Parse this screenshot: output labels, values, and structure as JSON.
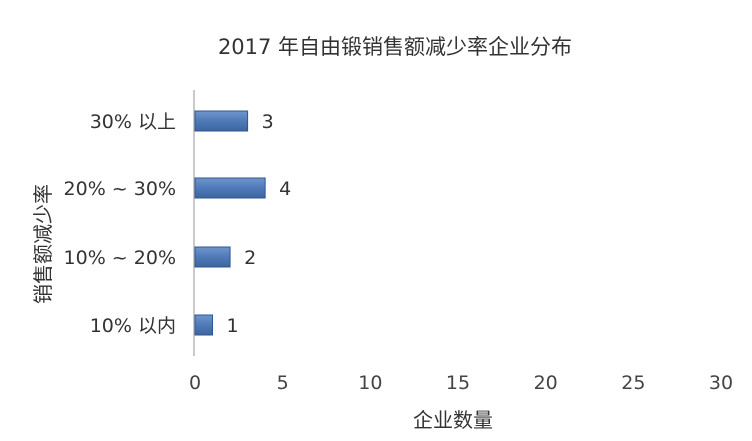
{
  "chart_data": {
    "type": "bar",
    "orientation": "horizontal",
    "title": "2017 年自由锻销售额减少率企业分布",
    "xlabel": "企业数量",
    "ylabel": "销售额减少率",
    "categories": [
      "30% 以上",
      "20% ~ 30%",
      "10% ~ 20%",
      "10% 以内"
    ],
    "values": [
      3,
      4,
      2,
      1
    ],
    "data_labels": [
      "3",
      "4",
      "2",
      "1"
    ],
    "xlim": [
      0,
      30
    ],
    "xticks": [
      "0",
      "5",
      "10",
      "15",
      "20",
      "25",
      "30"
    ],
    "grid": false,
    "legend": "none",
    "bar_color": "#4f7ab8",
    "bar_edge_color": "#2f5590"
  }
}
